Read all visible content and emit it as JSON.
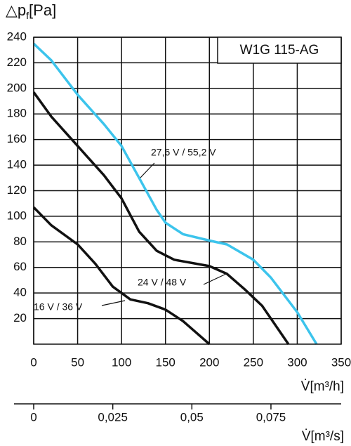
{
  "chart_data": {
    "type": "line",
    "title": "W1G 115-AG",
    "ylabel": "△p",
    "ylabel_sub": "f",
    "ylabel_unit": "[Pa]",
    "xlabel": "V̇[m³/h]",
    "x2label": "V̇[m³/s]",
    "xlim": [
      0,
      350
    ],
    "xticks": [
      0,
      50,
      100,
      150,
      200,
      250,
      300,
      350
    ],
    "x2lim": [
      0,
      0.0972
    ],
    "x2ticks": [
      0,
      {
        "value": 0.025,
        "label": "0,025"
      },
      {
        "value": 0.05,
        "label": "0,05"
      },
      {
        "value": 0.075,
        "label": "0,075"
      }
    ],
    "ylim": [
      0,
      240
    ],
    "yticks": [
      20,
      40,
      60,
      80,
      100,
      120,
      140,
      160,
      180,
      200,
      220,
      240
    ],
    "grid": true,
    "series": [
      {
        "name": "27,6 V / 55,2 V",
        "color": "#3cc4ec",
        "x": [
          0,
          20,
          50,
          80,
          100,
          120,
          140,
          150,
          170,
          200,
          220,
          250,
          270,
          300,
          322
        ],
        "values": [
          235,
          222,
          195,
          172,
          155,
          130,
          105,
          95,
          86,
          81,
          78,
          66,
          52,
          25,
          0
        ]
      },
      {
        "name": "24 V / 48 V",
        "color": "#111111",
        "x": [
          0,
          20,
          50,
          80,
          100,
          120,
          140,
          160,
          200,
          220,
          240,
          260,
          290
        ],
        "values": [
          197,
          178,
          155,
          132,
          114,
          88,
          73,
          66,
          61,
          55,
          43,
          30,
          0
        ]
      },
      {
        "name": "16 V / 36 V",
        "color": "#111111",
        "x": [
          0,
          20,
          50,
          70,
          90,
          110,
          130,
          150,
          170,
          190,
          200
        ],
        "values": [
          107,
          93,
          78,
          63,
          45,
          35,
          32,
          27,
          18,
          6,
          0
        ]
      }
    ]
  }
}
